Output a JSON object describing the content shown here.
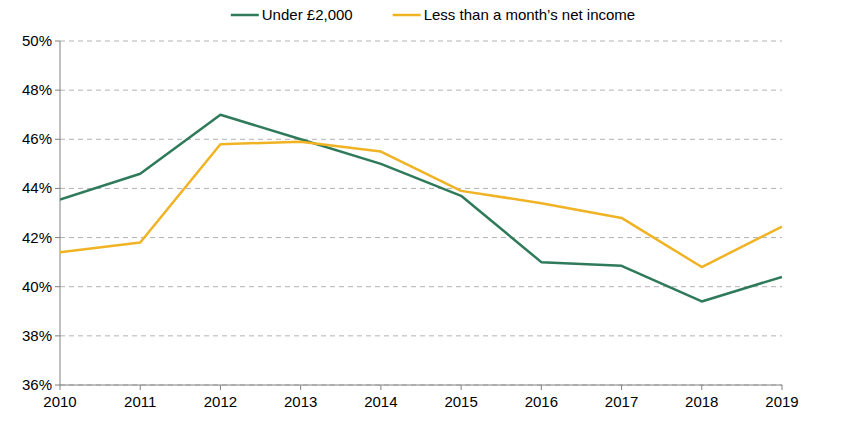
{
  "chart_data": {
    "type": "line",
    "x": [
      2010,
      2011,
      2012,
      2013,
      2014,
      2015,
      2016,
      2017,
      2018,
      2019
    ],
    "xlim": [
      2010,
      2019
    ],
    "xticks": [
      2010,
      2011,
      2012,
      2013,
      2014,
      2015,
      2016,
      2017,
      2018,
      2019
    ],
    "ylim": [
      36,
      50
    ],
    "yticks": [
      {
        "value": 36,
        "label": "36%"
      },
      {
        "value": 38,
        "label": "38%"
      },
      {
        "value": 40,
        "label": "40%"
      },
      {
        "value": 42,
        "label": "42%"
      },
      {
        "value": 44,
        "label": "44%"
      },
      {
        "value": 46,
        "label": "46%"
      },
      {
        "value": 48,
        "label": "48%"
      },
      {
        "value": 50,
        "label": "50%"
      }
    ],
    "grid": true,
    "legend": "top",
    "series": [
      {
        "name": "Under £2,000",
        "color": "#2e7a5a",
        "values": [
          43.55,
          44.6,
          47.0,
          46.0,
          45.0,
          43.7,
          41.0,
          40.85,
          39.4,
          40.4
        ]
      },
      {
        "name": "Less than a month’s net income",
        "color": "#f0b323",
        "values": [
          41.4,
          41.8,
          45.8,
          45.9,
          45.5,
          43.9,
          43.4,
          42.8,
          40.8,
          42.45
        ]
      }
    ]
  }
}
